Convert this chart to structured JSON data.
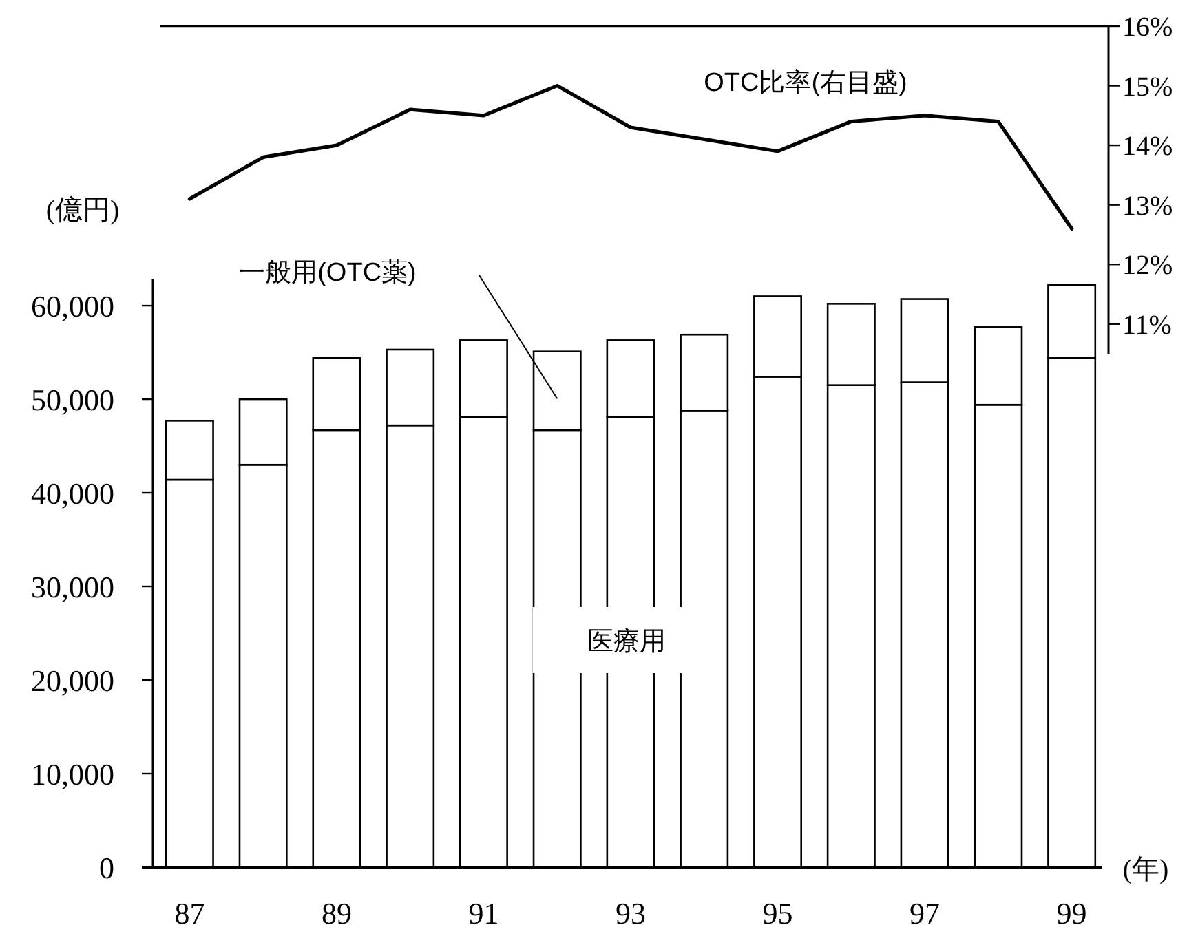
{
  "chart_data": [
    {
      "type": "line",
      "categories": [
        null,
        null,
        null,
        null,
        null,
        null,
        null,
        null,
        null,
        null,
        null,
        null,
        null
      ],
      "series": [
        {
          "name": "OTC比率(右目盛)",
          "color": "#000000",
          "values": [
            13.1,
            13.8,
            14.0,
            14.6,
            14.5,
            15.0,
            14.3,
            14.1,
            13.9,
            14.4,
            14.5,
            14.4,
            12.6
          ]
        }
      ],
      "ylim": [
        10.5,
        16
      ],
      "yticks": [
        {
          "value": 11,
          "label": "11%"
        },
        {
          "value": 12,
          "label": "12%"
        },
        {
          "value": 13,
          "label": "13%"
        },
        {
          "value": 14,
          "label": "14%"
        },
        {
          "value": 15,
          "label": "15%"
        },
        {
          "value": 16,
          "label": "16%"
        }
      ]
    },
    {
      "type": "bar",
      "stacked": true,
      "categories": [
        "87",
        null,
        "89",
        null,
        "91",
        null,
        "93",
        null,
        "95",
        null,
        "97",
        null,
        "99"
      ],
      "series": [
        {
          "name": "医療用",
          "color": "#ffffff",
          "values": [
            41400,
            43000,
            46700,
            47200,
            48100,
            46700,
            48100,
            48800,
            52400,
            51500,
            51800,
            49400,
            54400
          ]
        },
        {
          "name": "一般用(OTC薬)",
          "color": "#ffffff",
          "values": [
            6300,
            7000,
            7700,
            8100,
            8200,
            8400,
            8200,
            8100,
            8600,
            8700,
            8900,
            8300,
            7800
          ]
        }
      ],
      "ylabel": "(億円)",
      "xlabel": "(年)",
      "ylim": [
        0,
        62800
      ],
      "yticks": [
        0,
        {
          "value": 10000,
          "label": "10,000"
        },
        {
          "value": 20000,
          "label": "20,000"
        },
        {
          "value": 30000,
          "label": "30,000"
        },
        {
          "value": 40000,
          "label": "40,000"
        },
        {
          "value": 50000,
          "label": "50,000"
        },
        {
          "value": 60000,
          "label": "60,000"
        }
      ]
    }
  ]
}
